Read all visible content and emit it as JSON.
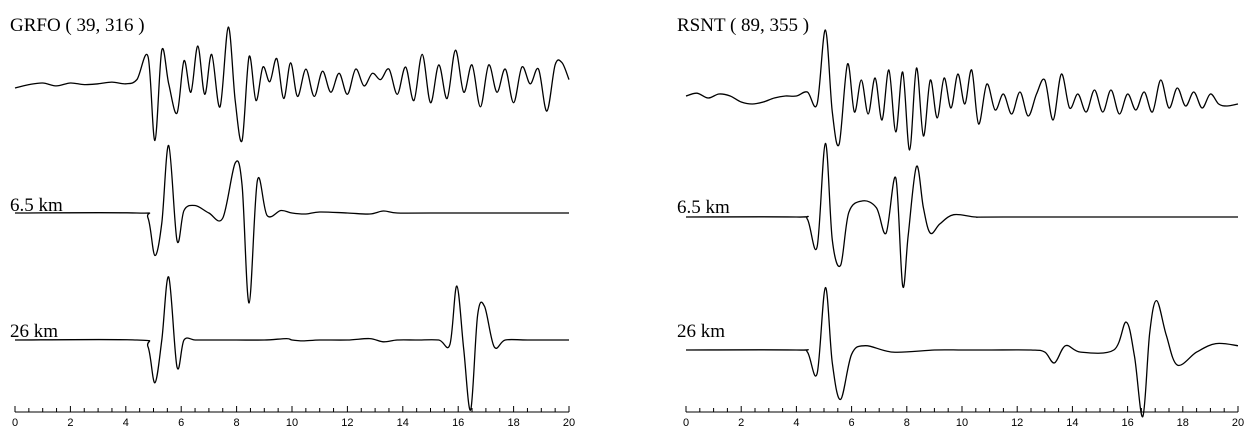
{
  "chart_data": [
    {
      "type": "line",
      "title": "GRFO ( 39, 316 )",
      "xlabel": "",
      "ylabel": "",
      "xlim": [
        0,
        20
      ],
      "x_ticks": [
        "0",
        "2",
        "4",
        "6",
        "8",
        "10",
        "12",
        "14",
        "16",
        "18",
        "20"
      ],
      "grid": false,
      "series": [
        {
          "name": "",
          "t": [
            0,
            0.5,
            1,
            1.5,
            2,
            2.5,
            3,
            3.5,
            4,
            4.4,
            4.8,
            5.05,
            5.3,
            5.55,
            5.85,
            6.1,
            6.35,
            6.6,
            6.85,
            7.1,
            7.4,
            7.7,
            7.95,
            8.2,
            8.45,
            8.7,
            8.95,
            9.2,
            9.45,
            9.7,
            9.95,
            10.2,
            10.5,
            10.8,
            11.1,
            11.4,
            11.7,
            12.0,
            12.3,
            12.6,
            12.9,
            13.2,
            13.5,
            13.8,
            14.1,
            14.4,
            14.7,
            15.0,
            15.3,
            15.6,
            15.9,
            16.2,
            16.5,
            16.8,
            17.1,
            17.4,
            17.7,
            18.0,
            18.3,
            18.6,
            18.9,
            19.2,
            19.5,
            19.75,
            20
          ],
          "v": [
            0,
            0.08,
            0.12,
            0.05,
            0.12,
            0.08,
            0.1,
            0.14,
            0.1,
            0.2,
            0.75,
            -1.25,
            0.9,
            0.1,
            -0.6,
            0.65,
            -0.1,
            1.0,
            -0.15,
            0.8,
            -0.45,
            1.45,
            -0.3,
            -1.25,
            0.75,
            -0.3,
            0.5,
            0.15,
            0.7,
            -0.25,
            0.6,
            -0.2,
            0.45,
            -0.2,
            0.4,
            -0.1,
            0.35,
            -0.15,
            0.45,
            0.05,
            0.35,
            0.2,
            0.45,
            -0.15,
            0.5,
            -0.3,
            0.8,
            -0.35,
            0.55,
            -0.25,
            0.9,
            -0.1,
            0.55,
            -0.45,
            0.55,
            -0.1,
            0.45,
            -0.35,
            0.5,
            0.1,
            0.45,
            -0.55,
            0.55,
            0.6,
            0.2
          ]
        },
        {
          "name": "6.5 km",
          "t": [
            0,
            4.4,
            4.8,
            5.05,
            5.3,
            5.55,
            5.85,
            6.1,
            6.5,
            7.0,
            7.5,
            7.95,
            8.2,
            8.45,
            8.75,
            9.1,
            9.6,
            10.0,
            10.5,
            11.0,
            12.0,
            12.8,
            13.3,
            13.8,
            15.0,
            20
          ],
          "v": [
            0,
            0.0,
            -0.1,
            -0.85,
            -0.2,
            1.35,
            -0.55,
            0.05,
            0.15,
            0.0,
            -0.1,
            1.0,
            0.55,
            -1.8,
            0.65,
            -0.05,
            0.05,
            0.0,
            -0.02,
            0.02,
            0.0,
            -0.02,
            0.04,
            0.0,
            0.0,
            0.0
          ]
        },
        {
          "name": "26 km",
          "t": [
            0,
            4.4,
            4.8,
            5.05,
            5.3,
            5.55,
            5.85,
            6.1,
            6.5,
            7.0,
            8.0,
            9.0,
            9.8,
            10.0,
            10.4,
            11.0,
            12.0,
            12.8,
            13.3,
            13.8,
            14.5,
            15.3,
            15.7,
            15.95,
            16.2,
            16.45,
            16.7,
            16.95,
            17.3,
            17.7,
            18.5,
            20
          ],
          "v": [
            0,
            0.0,
            -0.15,
            -0.95,
            0.0,
            1.4,
            -0.6,
            0.0,
            0.0,
            0.0,
            0.0,
            0.0,
            0.03,
            0.0,
            -0.02,
            0.0,
            0.0,
            0.03,
            -0.04,
            0.0,
            0.0,
            0.0,
            -0.1,
            1.2,
            -0.2,
            -1.55,
            0.55,
            0.75,
            -0.15,
            0.0,
            0.0,
            0.0
          ]
        }
      ]
    },
    {
      "type": "line",
      "title": "RSNT ( 89, 355 )",
      "xlabel": "",
      "ylabel": "",
      "xlim": [
        0,
        20
      ],
      "x_ticks": [
        "0",
        "2",
        "4",
        "6",
        "8",
        "10",
        "12",
        "14",
        "16",
        "18",
        "20"
      ],
      "grid": false,
      "series": [
        {
          "name": "",
          "t": [
            0,
            0.4,
            0.8,
            1.2,
            1.6,
            2.0,
            2.4,
            2.8,
            3.2,
            3.6,
            4.0,
            4.4,
            4.75,
            5.05,
            5.3,
            5.55,
            5.85,
            6.1,
            6.35,
            6.6,
            6.85,
            7.1,
            7.35,
            7.6,
            7.85,
            8.1,
            8.35,
            8.6,
            8.85,
            9.1,
            9.35,
            9.6,
            9.85,
            10.1,
            10.35,
            10.6,
            10.9,
            11.2,
            11.5,
            11.8,
            12.1,
            12.4,
            12.7,
            13.0,
            13.3,
            13.6,
            13.9,
            14.2,
            14.5,
            14.8,
            15.1,
            15.4,
            15.7,
            16.0,
            16.3,
            16.6,
            16.9,
            17.2,
            17.5,
            17.8,
            18.1,
            18.4,
            18.7,
            19.0,
            19.3,
            19.6,
            20
          ],
          "v": [
            0.05,
            0.12,
            0.0,
            0.1,
            0.05,
            -0.1,
            -0.15,
            -0.1,
            0.0,
            0.05,
            0.05,
            0.15,
            -0.15,
            1.7,
            -0.35,
            -1.15,
            0.85,
            -0.35,
            0.45,
            -0.4,
            0.5,
            -0.55,
            0.7,
            -0.85,
            0.65,
            -1.3,
            0.75,
            -0.95,
            0.45,
            -0.5,
            0.5,
            -0.25,
            0.6,
            -0.15,
            0.7,
            -0.65,
            0.35,
            -0.3,
            0.1,
            -0.4,
            0.15,
            -0.45,
            0.1,
            0.45,
            -0.55,
            0.6,
            -0.25,
            0.1,
            -0.35,
            0.2,
            -0.35,
            0.2,
            -0.4,
            0.1,
            -0.3,
            0.15,
            -0.35,
            0.45,
            -0.25,
            0.25,
            -0.2,
            0.15,
            -0.25,
            0.1,
            -0.15,
            -0.2,
            -0.15
          ]
        },
        {
          "name": "6.5 km",
          "t": [
            0,
            4.0,
            4.4,
            4.75,
            5.05,
            5.3,
            5.6,
            5.9,
            6.4,
            6.9,
            7.25,
            7.6,
            7.85,
            8.05,
            8.35,
            8.6,
            8.85,
            9.2,
            9.7,
            10.5,
            11.5,
            20
          ],
          "v": [
            0,
            0.0,
            -0.05,
            -0.65,
            1.6,
            -0.5,
            -1.05,
            0.1,
            0.35,
            0.2,
            -0.35,
            0.85,
            -1.5,
            -0.4,
            1.1,
            0.2,
            -0.35,
            -0.15,
            0.05,
            0.0,
            0.0,
            0.0
          ]
        },
        {
          "name": "26 km",
          "t": [
            0,
            4.0,
            4.4,
            4.75,
            5.05,
            5.3,
            5.6,
            6.0,
            6.5,
            7.5,
            9.0,
            10.0,
            11.0,
            12.5,
            13.0,
            13.35,
            13.75,
            14.3,
            15.5,
            15.95,
            16.25,
            16.55,
            16.8,
            17.05,
            17.4,
            17.8,
            18.5,
            19.2,
            20
          ],
          "v": [
            0,
            0.0,
            -0.05,
            -0.55,
            1.45,
            -0.3,
            -1.15,
            -0.1,
            0.1,
            -0.05,
            0.0,
            0.0,
            0.0,
            0.0,
            -0.05,
            -0.3,
            0.1,
            -0.05,
            0.0,
            0.65,
            -0.15,
            -1.55,
            0.4,
            1.15,
            0.35,
            -0.35,
            -0.05,
            0.15,
            0.1
          ]
        }
      ]
    }
  ]
}
